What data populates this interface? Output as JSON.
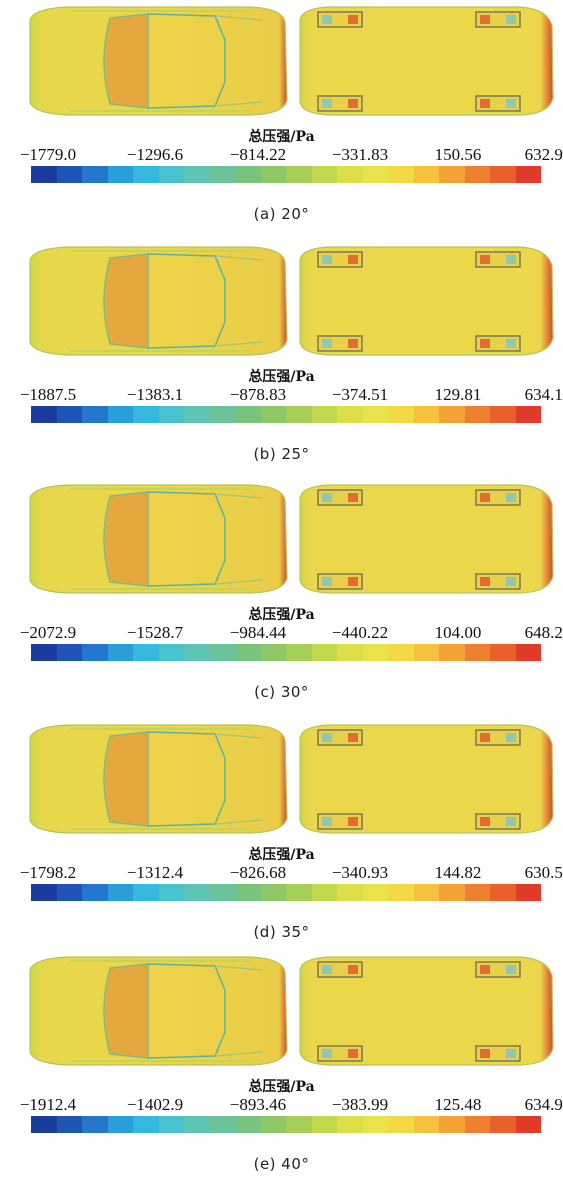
{
  "legend_title": "总压强/Pa",
  "colorbar": {
    "colors": [
      "#1a3c9a",
      "#1f56b5",
      "#2477cc",
      "#2a9ed9",
      "#35b8de",
      "#49c2cf",
      "#5ec4b4",
      "#6bc39a",
      "#7ac37e",
      "#8ec766",
      "#a8cf55",
      "#c2d84c",
      "#dbe04a",
      "#e9e34b",
      "#f2d845",
      "#f6c13d",
      "#f3a236",
      "#ee8130",
      "#e8602c",
      "#e03a2a"
    ]
  },
  "panels": [
    {
      "id": "a",
      "caption": "(a) 20°",
      "ticks": [
        "−1779.0",
        "−1296.6",
        "−814.22",
        "−331.83",
        "150.56",
        "632.95"
      ]
    },
    {
      "id": "b",
      "caption": "(b) 25°",
      "ticks": [
        "−1887.5",
        "−1383.1",
        "−878.83",
        "−374.51",
        "129.81",
        "634.13"
      ]
    },
    {
      "id": "c",
      "caption": "(c) 30°",
      "ticks": [
        "−2072.9",
        "−1528.7",
        "−984.44",
        "−440.22",
        "104.00",
        "648.22"
      ]
    },
    {
      "id": "d",
      "caption": "(d) 35°",
      "ticks": [
        "−1798.2",
        "−1312.4",
        "−826.68",
        "−340.93",
        "144.82",
        "630.57"
      ]
    },
    {
      "id": "e",
      "caption": "(e) 40°",
      "ticks": [
        "−1912.4",
        "−1402.9",
        "−893.46",
        "−383.99",
        "125.48",
        "634.95"
      ]
    }
  ]
}
